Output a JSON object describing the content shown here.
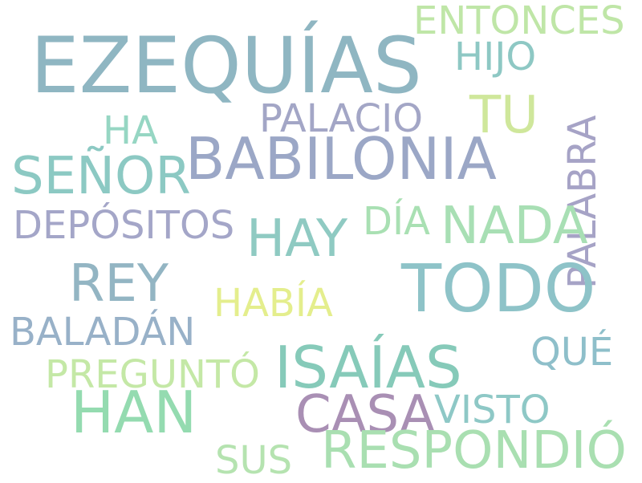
{
  "words": {
    "ezequias": "EZEQUÍAS",
    "entonces": "ENTONCES",
    "hijo": "HIJO",
    "tu": "TU",
    "palacio": "PALACIO",
    "ha": "HA",
    "babilonia": "BABILONIA",
    "senor": "SEÑOR",
    "palabra": "PALABRA",
    "depositos": "DEPÓSITOS",
    "hay": "HAY",
    "dia": "DÍA",
    "nada": "NADA",
    "todo": "TODO",
    "rey": "REY",
    "habia": "HABÍA",
    "baladan": "BALADÁN",
    "que": "QUÉ",
    "isaias": "ISAÍAS",
    "pregunto": "PREGUNTÓ",
    "han": "HAN",
    "casa": "CASA",
    "visto": "VISTO",
    "sus": "SUS",
    "respondio": "RESPONDIÓ"
  },
  "colors": {
    "background": "#ffffff",
    "palette": [
      "#8fb6c2",
      "#bfe6a7",
      "#8ec8c4",
      "#cfe79b",
      "#a3a6c6",
      "#96d6c3",
      "#9ba7c6",
      "#8cc9c3",
      "#a6a3c6",
      "#a4a6c8",
      "#8fcac2",
      "#a9e0b3",
      "#a8dfb4",
      "#8ec3c8",
      "#93b5c3",
      "#e4ee8d",
      "#98b1c8",
      "#8ebfca",
      "#86cab9",
      "#c4e8a6",
      "#94dbb0",
      "#a98fb4",
      "#8ec8c6",
      "#b5e3b0",
      "#a9dfb1"
    ]
  }
}
